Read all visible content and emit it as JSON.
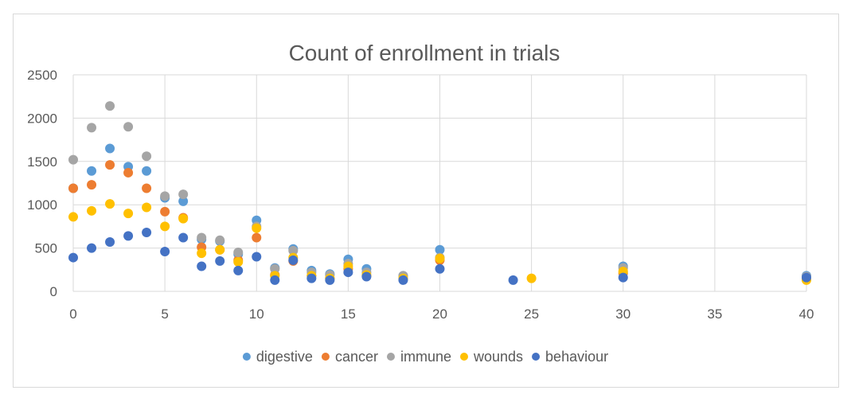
{
  "chart_data": {
    "type": "scatter",
    "title": "Count of enrollment in trials",
    "xlabel": "",
    "ylabel": "",
    "xlim": [
      0,
      40
    ],
    "ylim": [
      0,
      2500
    ],
    "xticks": [
      "0",
      "5",
      "10",
      "15",
      "20",
      "25",
      "30",
      "35",
      "40"
    ],
    "yticks": [
      "0",
      "500",
      "1000",
      "1500",
      "2000",
      "2500"
    ],
    "grid": true,
    "legend_position": "bottom",
    "series": [
      {
        "name": "digestive",
        "color": "#5B9BD5",
        "points": [
          [
            0,
            1190
          ],
          [
            1,
            1390
          ],
          [
            2,
            1650
          ],
          [
            3,
            1440
          ],
          [
            4,
            1390
          ],
          [
            5,
            1080
          ],
          [
            6,
            1040
          ],
          [
            7,
            600
          ],
          [
            8,
            580
          ],
          [
            9,
            430
          ],
          [
            10,
            820
          ],
          [
            11,
            270
          ],
          [
            12,
            490
          ],
          [
            13,
            240
          ],
          [
            14,
            200
          ],
          [
            15,
            370
          ],
          [
            16,
            260
          ],
          [
            18,
            180
          ],
          [
            20,
            480
          ],
          [
            30,
            290
          ],
          [
            40,
            180
          ]
        ]
      },
      {
        "name": "cancer",
        "color": "#ED7D31",
        "points": [
          [
            0,
            1190
          ],
          [
            1,
            1230
          ],
          [
            2,
            1460
          ],
          [
            3,
            1370
          ],
          [
            4,
            1190
          ],
          [
            5,
            920
          ],
          [
            6,
            850
          ],
          [
            7,
            510
          ],
          [
            8,
            480
          ],
          [
            9,
            360
          ],
          [
            10,
            620
          ],
          [
            11,
            190
          ],
          [
            12,
            350
          ],
          [
            13,
            180
          ],
          [
            14,
            150
          ],
          [
            15,
            260
          ],
          [
            16,
            180
          ],
          [
            18,
            140
          ],
          [
            20,
            360
          ],
          [
            30,
            210
          ],
          [
            40,
            140
          ]
        ]
      },
      {
        "name": "immune",
        "color": "#A5A5A5",
        "points": [
          [
            0,
            1520
          ],
          [
            1,
            1890
          ],
          [
            2,
            2140
          ],
          [
            3,
            1900
          ],
          [
            4,
            1560
          ],
          [
            5,
            1100
          ],
          [
            6,
            1120
          ],
          [
            7,
            620
          ],
          [
            8,
            590
          ],
          [
            9,
            450
          ],
          [
            10,
            750
          ],
          [
            11,
            260
          ],
          [
            12,
            470
          ],
          [
            13,
            220
          ],
          [
            14,
            190
          ],
          [
            15,
            320
          ],
          [
            16,
            220
          ],
          [
            18,
            180
          ],
          [
            20,
            390
          ],
          [
            30,
            270
          ],
          [
            40,
            170
          ]
        ]
      },
      {
        "name": "wounds",
        "color": "#FFC000",
        "points": [
          [
            0,
            860
          ],
          [
            1,
            930
          ],
          [
            2,
            1010
          ],
          [
            3,
            900
          ],
          [
            4,
            970
          ],
          [
            5,
            750
          ],
          [
            6,
            840
          ],
          [
            7,
            440
          ],
          [
            8,
            480
          ],
          [
            9,
            340
          ],
          [
            10,
            730
          ],
          [
            11,
            180
          ],
          [
            12,
            390
          ],
          [
            13,
            180
          ],
          [
            14,
            150
          ],
          [
            15,
            290
          ],
          [
            16,
            190
          ],
          [
            18,
            150
          ],
          [
            20,
            380
          ],
          [
            25,
            150
          ],
          [
            30,
            230
          ],
          [
            40,
            130
          ]
        ]
      },
      {
        "name": "behaviour",
        "color": "#4472C4",
        "points": [
          [
            0,
            390
          ],
          [
            1,
            500
          ],
          [
            2,
            570
          ],
          [
            3,
            640
          ],
          [
            4,
            680
          ],
          [
            5,
            460
          ],
          [
            6,
            620
          ],
          [
            7,
            290
          ],
          [
            8,
            350
          ],
          [
            9,
            240
          ],
          [
            10,
            400
          ],
          [
            11,
            130
          ],
          [
            12,
            360
          ],
          [
            13,
            150
          ],
          [
            14,
            130
          ],
          [
            15,
            220
          ],
          [
            16,
            170
          ],
          [
            18,
            130
          ],
          [
            20,
            260
          ],
          [
            24,
            130
          ],
          [
            30,
            160
          ],
          [
            40,
            160
          ]
        ]
      }
    ]
  }
}
